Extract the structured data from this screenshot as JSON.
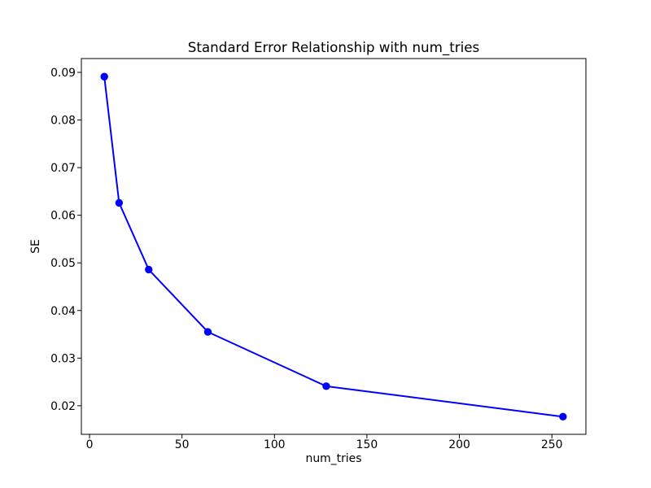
{
  "chart_data": {
    "type": "line",
    "title": "Standard Error Relationship with num_tries",
    "xlabel": "num_tries",
    "ylabel": "SE",
    "x": [
      8,
      16,
      32,
      64,
      128,
      256
    ],
    "y": [
      0.0891,
      0.0626,
      0.0486,
      0.0355,
      0.0241,
      0.0177
    ],
    "xlim": [
      -4.4,
      268.4
    ],
    "ylim": [
      0.014,
      0.0929
    ],
    "xticks": [
      0,
      50,
      100,
      150,
      200,
      250
    ],
    "xtick_labels": [
      "0",
      "50",
      "100",
      "150",
      "200",
      "250"
    ],
    "yticks": [
      0.02,
      0.03,
      0.04,
      0.05,
      0.06,
      0.07,
      0.08,
      0.09
    ],
    "ytick_labels": [
      "0.02",
      "0.03",
      "0.04",
      "0.05",
      "0.06",
      "0.07",
      "0.08",
      "0.09"
    ],
    "line_color": "#0000ff",
    "marker": "o",
    "marker_color": "#0000ff",
    "axis_color": "#000000",
    "background": "#ffffff",
    "grid": false,
    "legend_position": "none"
  }
}
